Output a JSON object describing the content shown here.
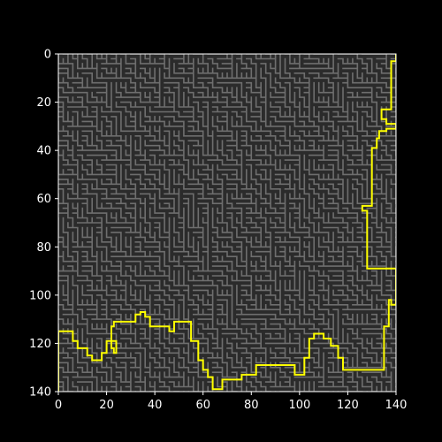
{
  "chart_data": {
    "type": "heatmap",
    "title": "",
    "xlabel": "",
    "ylabel": "",
    "xlim": [
      0,
      140
    ],
    "ylim": [
      140,
      0
    ],
    "x_ticks": [
      0,
      20,
      40,
      60,
      80,
      100,
      120,
      140
    ],
    "y_ticks": [
      0,
      20,
      40,
      60,
      80,
      100,
      120,
      140
    ],
    "x_tick_labels": [
      "0",
      "20",
      "40",
      "60",
      "80",
      "100",
      "120",
      "140"
    ],
    "y_tick_labels": [
      "0",
      "20",
      "40",
      "60",
      "80",
      "100",
      "120",
      "140"
    ],
    "grid": false,
    "colors": {
      "figure_background": "#000000",
      "maze_floor": "#2b2b2b",
      "maze_walls": "#6e6e6e",
      "path": "#ffff00",
      "axis_text": "#ffffff"
    },
    "series": [
      {
        "type": "path",
        "x": [
          0,
          0,
          6,
          6,
          8,
          8,
          12,
          12,
          14,
          14,
          18,
          18,
          20,
          20,
          22,
          22,
          23,
          23,
          24,
          24,
          22,
          22,
          23,
          23,
          32,
          32,
          34,
          34,
          36,
          36,
          38,
          38,
          46,
          46,
          48,
          48,
          55,
          55,
          58,
          58,
          60,
          60,
          62,
          62,
          64,
          64,
          68,
          68,
          76,
          76,
          82,
          82,
          98,
          98,
          102,
          102,
          104,
          104,
          106,
          106,
          110,
          110,
          113,
          113,
          116,
          116,
          118,
          118,
          135,
          135,
          137,
          137,
          138,
          138,
          140,
          140,
          128,
          128,
          126,
          126,
          130,
          130,
          132,
          132,
          133,
          133,
          136,
          136,
          140,
          140,
          136,
          136,
          134,
          134,
          138,
          138,
          140,
          140
        ],
        "y": [
          142,
          115,
          115,
          119,
          119,
          122,
          122,
          125,
          125,
          127,
          127,
          124,
          124,
          119,
          119,
          122,
          122,
          124,
          124,
          119,
          119,
          113,
          113,
          111,
          111,
          108,
          108,
          107,
          107,
          109,
          109,
          113,
          113,
          115,
          115,
          111,
          111,
          119,
          119,
          127,
          127,
          131,
          131,
          134,
          134,
          139,
          139,
          135,
          135,
          133,
          133,
          129,
          129,
          133,
          133,
          126,
          126,
          118,
          118,
          116,
          116,
          118,
          118,
          121,
          121,
          126,
          126,
          131,
          131,
          113,
          113,
          102,
          102,
          104,
          104,
          89,
          89,
          65,
          65,
          63,
          63,
          39,
          39,
          35,
          35,
          32,
          32,
          31,
          31,
          29,
          29,
          27,
          27,
          23,
          23,
          3,
          3,
          0
        ]
      }
    ]
  }
}
